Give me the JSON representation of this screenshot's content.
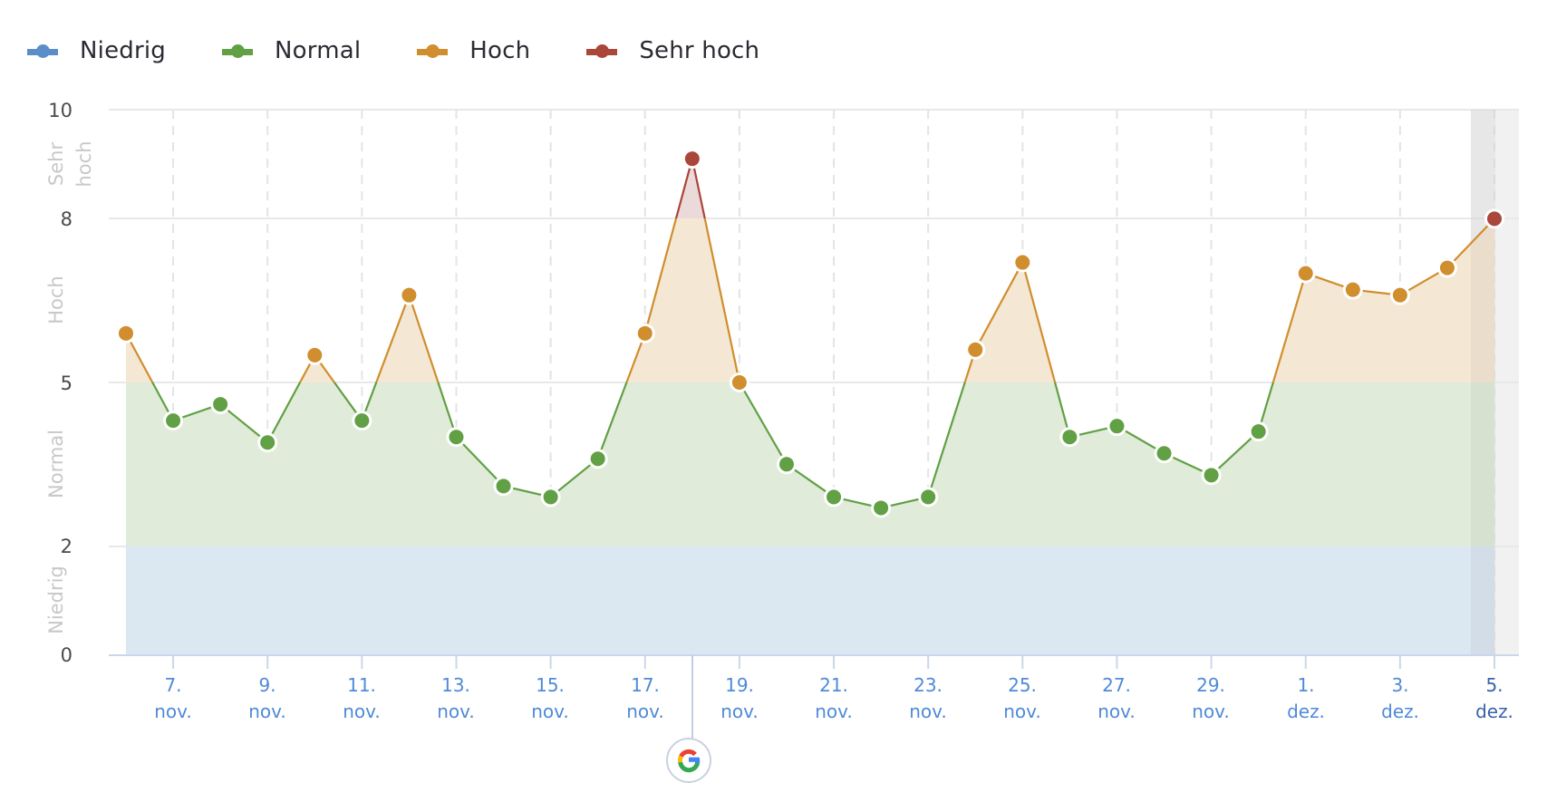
{
  "legend": {
    "items": [
      {
        "label": "Niedrig",
        "color": "#5b8ec9"
      },
      {
        "label": "Normal",
        "color": "#61a044"
      },
      {
        "label": "Hoch",
        "color": "#d08e2e"
      },
      {
        "label": "Sehr hoch",
        "color": "#aa463a"
      }
    ]
  },
  "y_axis": {
    "ticks": [
      "0",
      "2",
      "5",
      "8",
      "10"
    ],
    "bands": [
      {
        "label": "Niedrig",
        "from": 0,
        "to": 2,
        "fill": "#dbe7f1"
      },
      {
        "label": "Normal",
        "from": 2,
        "to": 5,
        "fill": "#e0ebd9"
      },
      {
        "label": "Hoch",
        "from": 5,
        "to": 8,
        "fill": "#f4e7d4"
      },
      {
        "label_line1": "Sehr",
        "label_line2": "hoch",
        "from": 8,
        "to": 10,
        "fill": "#ecd9d9"
      }
    ]
  },
  "x_axis": {
    "ticks": [
      {
        "day": "7.",
        "month": "nov."
      },
      {
        "day": "9.",
        "month": "nov."
      },
      {
        "day": "11.",
        "month": "nov."
      },
      {
        "day": "13.",
        "month": "nov."
      },
      {
        "day": "15.",
        "month": "nov."
      },
      {
        "day": "17.",
        "month": "nov."
      },
      {
        "day": "19.",
        "month": "nov."
      },
      {
        "day": "21.",
        "month": "nov."
      },
      {
        "day": "23.",
        "month": "nov."
      },
      {
        "day": "25.",
        "month": "nov."
      },
      {
        "day": "27.",
        "month": "nov."
      },
      {
        "day": "29.",
        "month": "nov."
      },
      {
        "day": "1.",
        "month": "dez."
      },
      {
        "day": "3.",
        "month": "dez."
      },
      {
        "day": "5.",
        "month": "dez."
      }
    ]
  },
  "annotation": {
    "icon": "google-update-icon",
    "date": "18. nov."
  },
  "chart_data": {
    "type": "line",
    "title": "",
    "xlabel": "",
    "ylabel": "",
    "ylim": [
      0,
      10
    ],
    "legend_position": "top-left",
    "grid": true,
    "categories": [
      "6. nov.",
      "7. nov.",
      "8. nov.",
      "9. nov.",
      "10. nov.",
      "11. nov.",
      "12. nov.",
      "13. nov.",
      "14. nov.",
      "15. nov.",
      "16. nov.",
      "17. nov.",
      "18. nov.",
      "19. nov.",
      "20. nov.",
      "21. nov.",
      "22. nov.",
      "23. nov.",
      "24. nov.",
      "25. nov.",
      "26. nov.",
      "27. nov.",
      "28. nov.",
      "29. nov.",
      "30. nov.",
      "1. dez.",
      "2. dez.",
      "3. dez.",
      "4. dez.",
      "5. dez."
    ],
    "values": [
      5.9,
      4.3,
      4.6,
      3.9,
      5.5,
      4.3,
      6.6,
      4.0,
      3.1,
      2.9,
      3.6,
      5.9,
      9.1,
      5.0,
      3.5,
      2.9,
      2.7,
      2.9,
      5.6,
      7.2,
      4.0,
      4.2,
      3.7,
      3.3,
      4.1,
      7.0,
      6.7,
      6.6,
      7.1,
      8.0
    ],
    "thresholds": [
      {
        "name": "Niedrig",
        "range": [
          0,
          2
        ],
        "color": "#5b8ec9"
      },
      {
        "name": "Normal",
        "range": [
          2,
          5
        ],
        "color": "#61a044"
      },
      {
        "name": "Hoch",
        "range": [
          5,
          8
        ],
        "color": "#d08e2e"
      },
      {
        "name": "Sehr hoch",
        "range": [
          8,
          10
        ],
        "color": "#aa463a"
      }
    ],
    "highlighted_category": "5. dez.",
    "annotations": [
      {
        "x": "18. nov.",
        "type": "google-update"
      }
    ]
  }
}
